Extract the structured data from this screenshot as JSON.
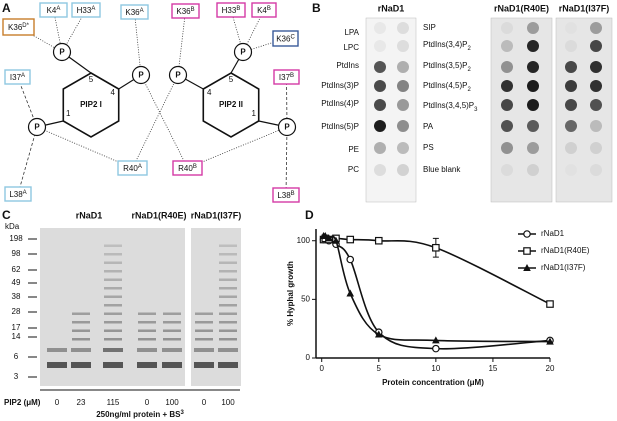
{
  "panel_labels": [
    "A",
    "B",
    "C",
    "D"
  ],
  "diagram": {
    "residues": [
      {
        "base": "K36",
        "sup": "D*"
      },
      {
        "base": "K4",
        "sup": "A"
      },
      {
        "base": "H33",
        "sup": "A"
      },
      {
        "base": "K36",
        "sup": "A"
      },
      {
        "base": "K36",
        "sup": "B"
      },
      {
        "base": "H33",
        "sup": "B"
      },
      {
        "base": "K4",
        "sup": "B"
      },
      {
        "base": "K36",
        "sup": "C"
      },
      {
        "base": "I37",
        "sup": "A"
      },
      {
        "base": "L38",
        "sup": "A"
      },
      {
        "base": "R40",
        "sup": "A"
      },
      {
        "base": "R40",
        "sup": "B"
      },
      {
        "base": "I37",
        "sup": "B"
      },
      {
        "base": "L38",
        "sup": "B"
      }
    ],
    "lipids": [
      "PIP2 I",
      "PIP2 II"
    ],
    "phosphate": "P",
    "carbons": [
      "1",
      "4",
      "5"
    ]
  },
  "blot": {
    "titles": [
      "rNaD1",
      "rNaD1(R40E)",
      "rNaD1(I37F)"
    ],
    "left_lipids": [
      "LPA",
      "LPC",
      "PtdIns",
      "PtdIns(3)P",
      "PtdIns(4)P",
      "PtdIns(5)P",
      "PE",
      "PC"
    ],
    "right_lipids": [
      "SIP",
      {
        "base": "PtdIns(3,4)P",
        "sub": "2"
      },
      {
        "base": "PtdIns(3,5)P",
        "sub": "2"
      },
      {
        "base": "PtdIns(4,5)P",
        "sub": "2"
      },
      {
        "base": "PtdIns(3,4,5)P",
        "sub": "3"
      },
      "PA",
      "PS",
      "Blue blank"
    ]
  },
  "gel": {
    "titles": [
      "rNaD1",
      "rNaD1(R40E)",
      "rNaD1(I37F)"
    ],
    "unit": "kDa",
    "markers": [
      198,
      98,
      62,
      49,
      38,
      28,
      17,
      14,
      6,
      3
    ],
    "x_label": "PIP2 (μM)",
    "lanes": [
      0,
      23,
      115,
      0,
      100,
      0,
      100
    ],
    "caption": {
      "base": "250ng/ml protein + BS",
      "sup": "3"
    }
  },
  "chart_data": {
    "type": "line",
    "x_label": "Protein concentration (μM)",
    "y_label": "% Hyphal growth",
    "x": [
      0.16,
      0.31,
      0.63,
      1.25,
      2.5,
      5,
      10,
      20
    ],
    "series": [
      {
        "name": "rNaD1",
        "color": "#111111",
        "marker": "circle",
        "values": [
          101,
          102,
          100,
          97,
          84,
          22,
          8,
          15
        ]
      },
      {
        "name": "rNaD1(R40E)",
        "color": "#111111",
        "marker": "square",
        "values": [
          101,
          102,
          101,
          102,
          101,
          100,
          94,
          46
        ],
        "errors": [
          null,
          null,
          null,
          null,
          null,
          null,
          8,
          null
        ]
      },
      {
        "name": "rNaD1(I37F)",
        "color": "#111111",
        "marker": "triangle",
        "values": [
          104,
          104,
          102,
          100,
          55,
          20,
          15,
          14
        ]
      }
    ],
    "xlim": [
      -0.5,
      20
    ],
    "ylim": [
      0,
      110
    ],
    "xticks": [
      0,
      5,
      10,
      15,
      20
    ],
    "yticks": [
      0,
      50,
      100
    ]
  }
}
